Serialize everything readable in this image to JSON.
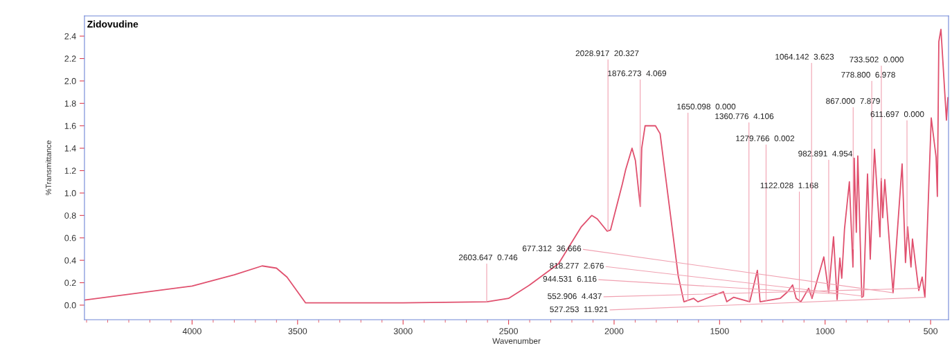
{
  "chart_data": {
    "type": "line",
    "title": "Zidovudine",
    "xlabel": "Wavenumber",
    "ylabel": "%Transmittance",
    "x": [
      4510,
      4000,
      3800,
      3668,
      3600,
      3550,
      3462,
      3000,
      2603,
      2500,
      2400,
      2263,
      2155,
      2106,
      2080,
      2033,
      2017,
      1961,
      1945,
      1915,
      1899,
      1876,
      1869,
      1853,
      1804,
      1782,
      1738,
      1696,
      1669,
      1623,
      1603,
      1482,
      1466,
      1433,
      1357,
      1321,
      1308,
      1213,
      1177,
      1154,
      1137,
      1115,
      1078,
      1062,
      1006,
      983,
      960,
      943,
      930,
      921,
      908,
      885,
      868,
      862,
      852,
      845,
      826,
      818,
      799,
      786,
      766,
      740,
      734,
      727,
      717,
      678,
      635,
      619,
      609,
      593,
      586,
      556,
      540,
      527,
      497,
      474,
      468,
      461,
      451,
      425,
      418
    ],
    "series": [
      {
        "color": "#e0506e",
        "values": [
          0.045,
          0.17,
          0.27,
          0.35,
          0.33,
          0.25,
          0.02,
          0.02,
          0.03,
          0.06,
          0.18,
          0.37,
          0.7,
          0.8,
          0.77,
          0.66,
          0.67,
          1.08,
          1.21,
          1.4,
          1.29,
          0.88,
          1.4,
          1.6,
          1.6,
          1.53,
          0.88,
          0.26,
          0.03,
          0.06,
          0.03,
          0.12,
          0.03,
          0.07,
          0.03,
          0.31,
          0.03,
          0.06,
          0.12,
          0.18,
          0.06,
          0.03,
          0.15,
          0.06,
          0.43,
          0.11,
          0.61,
          0.05,
          0.42,
          0.24,
          0.68,
          1.1,
          0.34,
          1.31,
          0.65,
          1.33,
          0.07,
          0.08,
          1.17,
          0.41,
          1.39,
          0.61,
          1.13,
          0.78,
          1.12,
          0.11,
          1.26,
          0.38,
          0.7,
          0.34,
          0.59,
          0.13,
          0.25,
          0.07,
          1.67,
          1.32,
          0.97,
          2.35,
          2.46,
          1.65,
          1.85
        ]
      }
    ],
    "xlim": [
      4510,
      415
    ],
    "ylim": [
      -0.13,
      2.58
    ],
    "xticks": [
      4000,
      3500,
      3000,
      2500,
      2000,
      1500,
      1000,
      500
    ],
    "yticks": [
      {
        "value": 0,
        "label": "0.0"
      },
      {
        "value": 0.2,
        "label": "0.2"
      },
      {
        "value": 0.4,
        "label": "0.4"
      },
      {
        "value": 0.6,
        "label": "0.6"
      },
      {
        "value": 0.8,
        "label": "0.8"
      },
      {
        "value": 1,
        "label": "1.0"
      },
      {
        "value": 1.2,
        "label": "1.2"
      },
      {
        "value": 1.4,
        "label": "1.4"
      },
      {
        "value": 1.6,
        "label": "1.6"
      },
      {
        "value": 1.8,
        "label": "1.8"
      },
      {
        "value": 2,
        "label": "2.0"
      },
      {
        "value": 2.2,
        "label": "2.2"
      },
      {
        "value": 2.4,
        "label": "2.4"
      }
    ],
    "grid": false,
    "marker": "none",
    "line_style": "solid",
    "annotations": [
      {
        "text": "2603.647  0.746",
        "x": 2603.647,
        "y": 0.03
      },
      {
        "text": "2028.917  20.327",
        "x": 2028.917,
        "y": 0.66
      },
      {
        "text": "1876.273  4.069",
        "x": 1876.273,
        "y": 0.88
      },
      {
        "text": "1650.098  0.000",
        "x": 1650.098,
        "y": 0.04
      },
      {
        "text": "1360.776  4.106",
        "x": 1360.776,
        "y": 0.03
      },
      {
        "text": "1279.766  0.002",
        "x": 1279.766,
        "y": 0.04
      },
      {
        "text": "1122.028  1.168",
        "x": 1122.028,
        "y": 0.04
      },
      {
        "text": "1064.142  3.623",
        "x": 1064.142,
        "y": 0.07
      },
      {
        "text": "733.502  0.000",
        "x": 733.502,
        "y": 1.11
      },
      {
        "text": "778.800  6.978",
        "x": 778.8,
        "y": 0.76
      },
      {
        "text": "867.000  7.879",
        "x": 867.0,
        "y": 0.5
      },
      {
        "text": "611.697  0.000",
        "x": 611.697,
        "y": 0.61
      },
      {
        "text": "982.891  4.954",
        "x": 982.891,
        "y": 0.11
      },
      {
        "text": "677.312  36.666",
        "x": 677.312,
        "y": 0.11
      },
      {
        "text": "818.277  2.676",
        "x": 818.277,
        "y": 0.08
      },
      {
        "text": "944.531  6.116",
        "x": 944.531,
        "y": 0.1
      },
      {
        "text": "552.906  4.437",
        "x": 552.906,
        "y": 0.15
      },
      {
        "text": "527.253  11.921",
        "x": 527.253,
        "y": 0.07
      }
    ]
  }
}
